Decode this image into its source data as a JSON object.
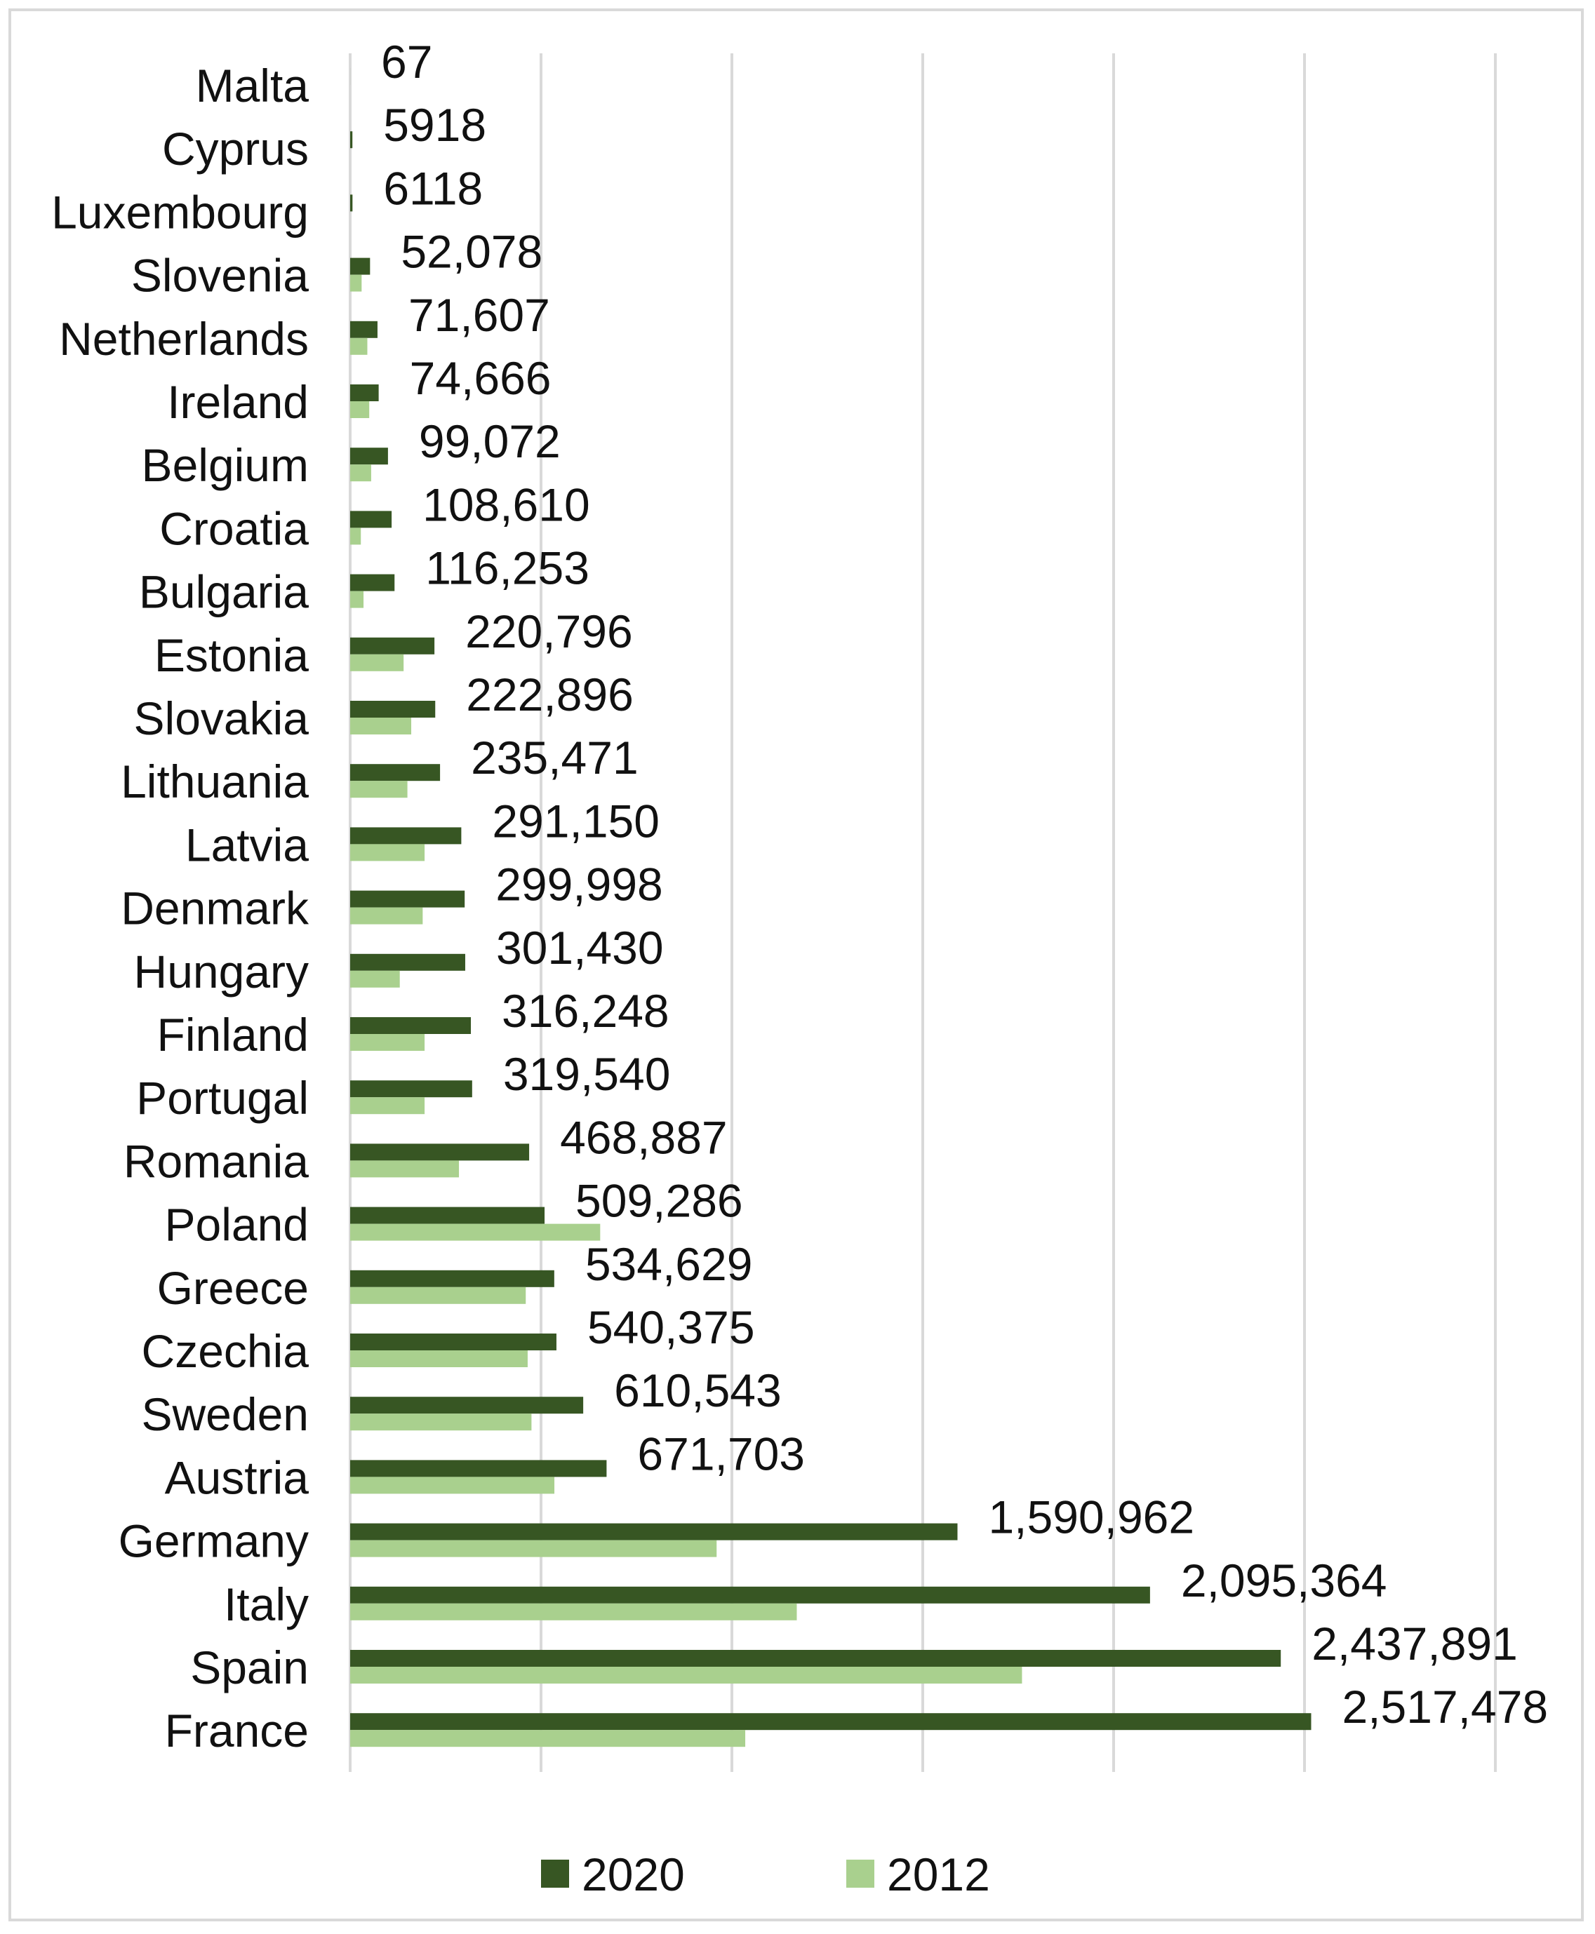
{
  "chart_data": {
    "type": "bar",
    "orientation": "horizontal",
    "title": "",
    "xlabel": "",
    "ylabel": "",
    "xlim": [
      0,
      3000000
    ],
    "grid": true,
    "legend_position": "bottom",
    "categories": [
      "Malta",
      "Cyprus",
      "Luxembourg",
      "Slovenia",
      "Netherlands",
      "Ireland",
      "Belgium",
      "Croatia",
      "Bulgaria",
      "Estonia",
      "Slovakia",
      "Lithuania",
      "Latvia",
      "Denmark",
      "Hungary",
      "Finland",
      "Portugal",
      "Romania",
      "Poland",
      "Greece",
      "Czechia",
      "Sweden",
      "Austria",
      "Germany",
      "Italy",
      "Spain",
      "France"
    ],
    "series": [
      {
        "name": "2020",
        "color": "#375623",
        "values": [
          67,
          5918,
          6118,
          52078,
          71607,
          74666,
          99072,
          108610,
          116253,
          220796,
          222896,
          235471,
          291150,
          299998,
          301430,
          316248,
          319540,
          468887,
          509286,
          534629,
          540375,
          610543,
          671703,
          1590962,
          2095364,
          2437891,
          2517478
        ]
      },
      {
        "name": "2012",
        "color": "#a9d08e",
        "values": [
          0,
          0,
          0,
          30000,
          45000,
          50000,
          55000,
          28000,
          35000,
          140000,
          160000,
          150000,
          195000,
          190000,
          130000,
          195000,
          195000,
          285000,
          655000,
          460000,
          465000,
          475000,
          535000,
          960000,
          1170000,
          1760000,
          1035000
        ]
      }
    ],
    "data_labels": [
      "67",
      "5918",
      "6118",
      "52,078",
      "71,607",
      "74,666",
      "99,072",
      "108,610",
      "116,253",
      "220,796",
      "222,896",
      "235,471",
      "291,150",
      "299,998",
      "301,430",
      "316,248",
      "319,540",
      "468,887",
      "509,286",
      "534,629",
      "540,375",
      "610,543",
      "671,703",
      "1,590,962",
      "2,095,364",
      "2,437,891",
      "2,517,478"
    ]
  }
}
